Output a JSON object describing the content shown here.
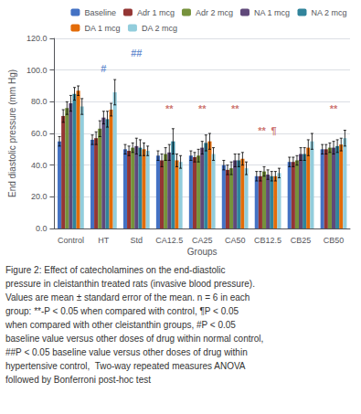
{
  "chart_data": {
    "type": "bar",
    "categories": [
      "Control",
      "HT",
      "Std",
      "CA12.5",
      "CA25",
      "CA50",
      "CB12.5",
      "CB25",
      "CB50"
    ],
    "series": [
      {
        "name": "Baseline",
        "color": "#4472C4",
        "values": [
          55,
          56,
          50,
          46,
          46,
          40,
          33,
          42,
          50
        ],
        "errors": [
          3,
          3,
          3,
          3,
          3,
          3,
          3,
          3,
          3
        ]
      },
      {
        "name": "Adr 1 mcg",
        "color": "#943634",
        "values": [
          71,
          57,
          49,
          43,
          45,
          37,
          33,
          42,
          50
        ],
        "errors": [
          4,
          4,
          3,
          4,
          3,
          3,
          3,
          3,
          3
        ]
      },
      {
        "name": "Adr 2 mcg",
        "color": "#76923C",
        "values": [
          76,
          63,
          51,
          47,
          46,
          38,
          36,
          43,
          51
        ],
        "errors": [
          4,
          5,
          3,
          4,
          4,
          4,
          3,
          3,
          3
        ]
      },
      {
        "name": "NA 1 mcg",
        "color": "#60497A",
        "values": [
          79,
          70,
          52,
          48,
          51,
          43,
          34,
          47,
          51
        ],
        "errors": [
          5,
          4,
          5,
          5,
          4,
          4,
          3,
          4,
          4
        ]
      },
      {
        "name": "NA 2 mcg",
        "color": "#31849B",
        "values": [
          85,
          69,
          51,
          55,
          54,
          43,
          33,
          47,
          52
        ],
        "errors": [
          4,
          5,
          5,
          8,
          5,
          4,
          3,
          4,
          4
        ]
      },
      {
        "name": "DA 1 mcg",
        "color": "#E36C09",
        "values": [
          87,
          75,
          50,
          43,
          55,
          44,
          33,
          51,
          53
        ],
        "errors": [
          3,
          4,
          4,
          4,
          5,
          4,
          3,
          5,
          4
        ]
      },
      {
        "name": "DA 2 mcg",
        "color": "#92CDDC",
        "values": [
          77,
          86,
          49,
          42,
          47,
          38,
          35,
          55,
          57
        ],
        "errors": [
          5,
          8,
          3,
          4,
          4,
          4,
          3,
          5,
          5
        ]
      }
    ],
    "xlabel": "Groups",
    "ylabel": "End diastolic pressure (mm Hg)",
    "ylim": [
      0,
      120
    ],
    "yticks": [
      {
        "value": 0,
        "label": "0.0"
      },
      {
        "value": 20,
        "label": "20.0"
      },
      {
        "value": 40,
        "label": "40.0"
      },
      {
        "value": 60,
        "label": "60.0"
      },
      {
        "value": 80,
        "label": "80.0"
      },
      {
        "value": 100,
        "label": "100.0"
      },
      {
        "value": 120,
        "label": "120.0"
      }
    ],
    "grid": true,
    "legend": "upper right",
    "annotations": [
      {
        "text": "#",
        "category": "HT",
        "y": 97,
        "color": "#4472C4"
      },
      {
        "text": "##",
        "category": "Std",
        "y": 107,
        "color": "#4472C4"
      },
      {
        "text": "**",
        "category": "CA12.5",
        "y": 72,
        "color": "#C0504D"
      },
      {
        "text": "**",
        "category": "CA25",
        "y": 72,
        "color": "#C0504D"
      },
      {
        "text": "**",
        "category": "CA50",
        "y": 72,
        "color": "#C0504D"
      },
      {
        "text": "**",
        "category": "CB12.5",
        "y": 58,
        "color": "#C0504D"
      },
      {
        "text": "¶",
        "category": "CB12.5",
        "y": 58,
        "color": "#C0504D"
      },
      {
        "text": "**",
        "category": "CB50",
        "y": 72,
        "color": "#C0504D"
      }
    ],
    "caption": [
      "Figure 2: Effect of catecholamines on the end-diastolic",
      "pressure in cleistanthin treated rats (invasive blood pressure).",
      "Values are mean ± standard error of the mean. n = 6 in each",
      "group: **-P < 0.05 when compared with control, ¶P < 0.05",
      "when compared with other cleistanthin groups, #P < 0.05",
      "baseline value versus other doses of drug within normal control,",
      "##P < 0.05 baseline value versus other doses of drug within",
      "hypertensive control,  Two-way repeated measures ANOVA",
      "followed by Bonferroni post-hoc test"
    ]
  }
}
